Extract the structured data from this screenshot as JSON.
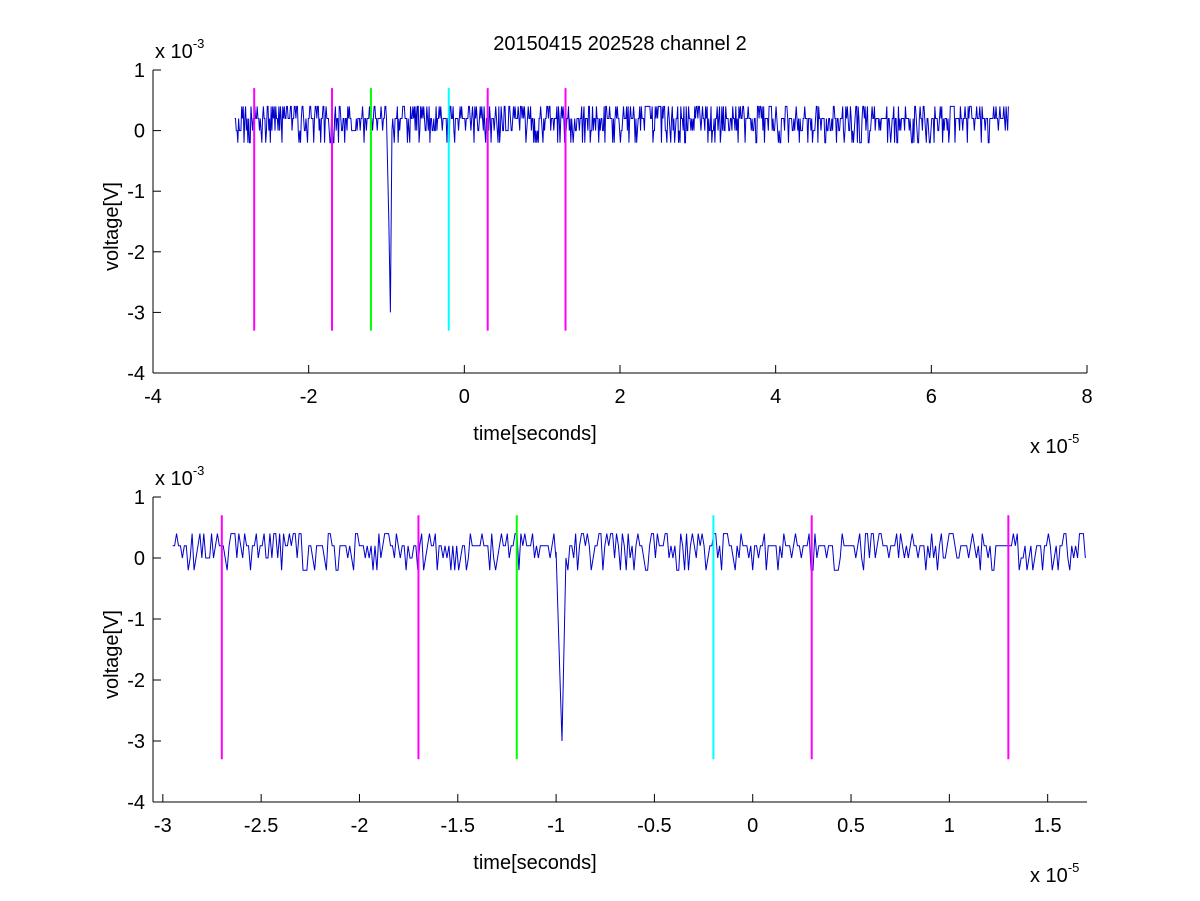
{
  "chart_data": [
    {
      "type": "line",
      "title": "20150415 202528 channel 2",
      "xlabel": "time[seconds]",
      "ylabel": "voltage[V]",
      "x_exponent_label": {
        "base": "x 10",
        "exp": "-5"
      },
      "y_exponent_label": {
        "base": "x 10",
        "exp": "-3"
      },
      "xlim": [
        -4,
        8
      ],
      "ylim": [
        -4,
        1
      ],
      "x_unit_scale": "1e-5",
      "y_unit_scale": "1e-3",
      "xticks": [
        -4,
        -2,
        0,
        2,
        4,
        6,
        8
      ],
      "xtick_labels": [
        "-4",
        "-2",
        "0",
        "2",
        "4",
        "6",
        "8"
      ],
      "yticks": [
        -4,
        -3,
        -2,
        -1,
        0,
        1
      ],
      "ytick_labels": [
        "-4",
        "-3",
        "-2",
        "-1",
        "0",
        "1"
      ],
      "grid": false,
      "series": [
        {
          "color": "#0000cc",
          "x_range": [
            -2.95,
            7.0
          ],
          "baseline": 0.2,
          "noise_levels": [
            0,
            0.2,
            0.4,
            -0.2
          ],
          "spike": {
            "x": [
              -1.0,
              -0.97,
              -0.95,
              -0.93
            ],
            "y": [
              0.2,
              -1.5,
              -3.0,
              0.0
            ]
          }
        }
      ],
      "markers": [
        {
          "x": -2.7,
          "y_range": [
            -3.3,
            0.7
          ],
          "color": "#ff00ff"
        },
        {
          "x": -1.7,
          "y_range": [
            -3.3,
            0.7
          ],
          "color": "#ff00ff"
        },
        {
          "x": -1.2,
          "y_range": [
            -3.3,
            0.7
          ],
          "color": "#00ff00"
        },
        {
          "x": -0.2,
          "y_range": [
            -3.3,
            0.7
          ],
          "color": "#00ffff"
        },
        {
          "x": 0.3,
          "y_range": [
            -3.3,
            0.7
          ],
          "color": "#ff00ff"
        },
        {
          "x": 1.3,
          "y_range": [
            -3.3,
            0.7
          ],
          "color": "#ff00ff"
        }
      ]
    },
    {
      "type": "line",
      "title": "",
      "xlabel": "time[seconds]",
      "ylabel": "voltage[V]",
      "x_exponent_label": {
        "base": "x 10",
        "exp": "-5"
      },
      "y_exponent_label": {
        "base": "x 10",
        "exp": "-3"
      },
      "xlim": [
        -3.05,
        1.7
      ],
      "ylim": [
        -4,
        1
      ],
      "x_unit_scale": "1e-5",
      "y_unit_scale": "1e-3",
      "xticks": [
        -3,
        -2.5,
        -2,
        -1.5,
        -1,
        -0.5,
        0,
        0.5,
        1,
        1.5
      ],
      "xtick_labels": [
        "-3",
        "-2.5",
        "-2",
        "-1.5",
        "-1",
        "-0.5",
        "0",
        "0.5",
        "1",
        "1.5"
      ],
      "yticks": [
        -4,
        -3,
        -2,
        -1,
        0,
        1
      ],
      "ytick_labels": [
        "-4",
        "-3",
        "-2",
        "-1",
        "0",
        "1"
      ],
      "grid": false,
      "series": [
        {
          "color": "#0000cc",
          "x_range": [
            -2.95,
            1.7
          ],
          "baseline": 0.2,
          "noise_levels": [
            0,
            0.2,
            0.4,
            -0.2
          ],
          "spike": {
            "x": [
              -1.0,
              -0.98,
              -0.97,
              -0.96,
              -0.95
            ],
            "y": [
              0.1,
              -2.0,
              -3.0,
              -1.5,
              0.0
            ]
          }
        }
      ],
      "markers": [
        {
          "x": -2.7,
          "y_range": [
            -3.3,
            0.7
          ],
          "color": "#ff00ff"
        },
        {
          "x": -1.7,
          "y_range": [
            -3.3,
            0.7
          ],
          "color": "#ff00ff"
        },
        {
          "x": -1.2,
          "y_range": [
            -3.3,
            0.7
          ],
          "color": "#00ff00"
        },
        {
          "x": -0.2,
          "y_range": [
            -3.3,
            0.7
          ],
          "color": "#00ffff"
        },
        {
          "x": 0.3,
          "y_range": [
            -3.3,
            0.7
          ],
          "color": "#ff00ff"
        },
        {
          "x": 1.3,
          "y_range": [
            -3.3,
            0.7
          ],
          "color": "#ff00ff"
        }
      ]
    }
  ]
}
